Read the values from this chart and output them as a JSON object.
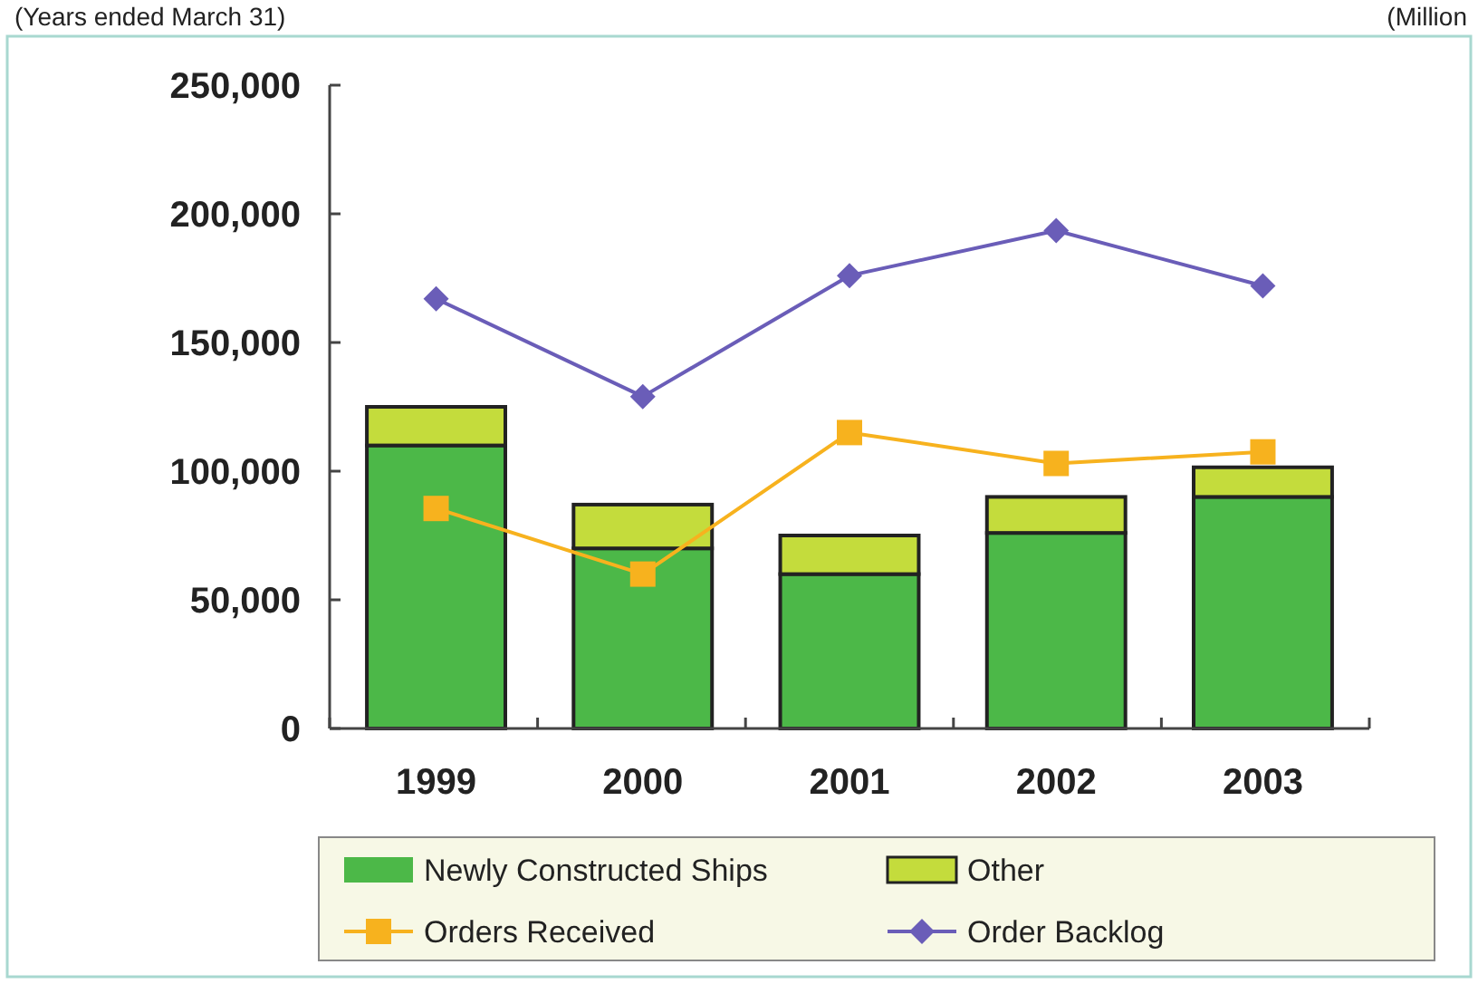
{
  "chart_data": {
    "type": "bar",
    "stacked": true,
    "categories": [
      "1999",
      "2000",
      "2001",
      "2002",
      "2003"
    ],
    "series": [
      {
        "name": "Newly Constructed Ships",
        "color": "#4cb848",
        "values": [
          110000,
          70000,
          60000,
          76000,
          90000
        ]
      },
      {
        "name": "Other",
        "color": "#c4dc3c",
        "values": [
          15000,
          17000,
          15000,
          14000,
          11500
        ]
      },
      {
        "name": "Orders Received",
        "type": "line",
        "color": "#f7b21e",
        "marker": "square",
        "values": [
          85500,
          60000,
          115000,
          103000,
          107500
        ]
      },
      {
        "name": "Order Backlog",
        "type": "line",
        "color": "#6a5db8",
        "marker": "diamond",
        "values": [
          167000,
          129000,
          176000,
          193500,
          172000
        ]
      }
    ],
    "ylim": [
      0,
      250000
    ],
    "yticks": [
      {
        "value": 0,
        "label": "0"
      },
      {
        "value": 50000,
        "label": "50,000"
      },
      {
        "value": 100000,
        "label": "100,000"
      },
      {
        "value": 150000,
        "label": "150,000"
      },
      {
        "value": 200000,
        "label": "200,000"
      },
      {
        "value": 250000,
        "label": "250,000"
      }
    ],
    "grid": false,
    "legend": "bottom",
    "annotations": [
      "(Years ended March 31)",
      "(Million"
    ]
  }
}
